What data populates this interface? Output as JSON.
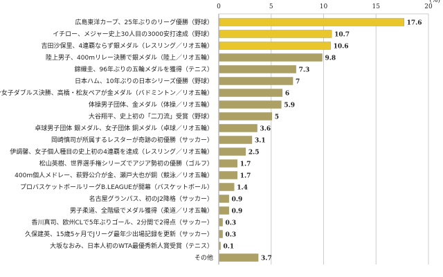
{
  "chart_data": {
    "type": "bar",
    "orientation": "horizontal",
    "unit": "(%)",
    "xlim": [
      0,
      20
    ],
    "xticks": [
      0,
      5,
      10,
      15,
      20
    ],
    "grid": true,
    "colors": {
      "highlight": "#E8C62C",
      "default": "#ADA064"
    },
    "highlight_count": 3,
    "categories": [
      "広島東洋カープ、25年ぶりのリーグ優勝（野球）",
      "イチロー、メジャー史上30人目の3000安打達成（野球）",
      "吉田沙保里、4連覇ならず銀メダル（レスリング／リオ五輪）",
      "陸上男子、400mリレー決勝で銀メダル（陸上／リオ五輪）",
      "錦織圭、96年ぶりの五輪メダルを獲得（テニス）",
      "日本ハム、10年ぶりの日本シリーズ優勝（野球）",
      "バドミントン女子ダブルス決勝、高橋・松友ペアが金メダル（バドミントン／リオ五輪）",
      "体操男子団体、金メダル（体操／リオ五輪）",
      "大谷翔平、史上初の「二刀流」受賞（野球）",
      "卓球男子団体 銀メダル、女子団体 銅メダル（卓球／リオ五輪）",
      "岡崎慎司が所属するレスターが奇跡の初優勝（サッカー）",
      "伊調馨、女子個人種目の史上初の4連覇を達成（レスリング／リオ五輪）",
      "松山英樹、世界選手権シリーズでアジア勢初の優勝（ゴルフ）",
      "400m個人メドレー、萩野公介が金、瀬戸大也が銅（競泳／リオ五輪）",
      "プロバスケットボールリーグB.LEAGUEが開幕（バスケットボール）",
      "名古屋グランパス、初のJ2降格（サッカー）",
      "男子柔道、全階級でメダル獲得（柔道／リオ五輪）",
      "香川真司、欧州CLで5年ぶりゴール、2分間で2得点（サッカー）",
      "久保建英、15歳5ヶ月でJリーグ最年少出場記録を更新（サッカー）",
      "大坂なおみ、日本人初のWTA最優秀新人賞受賞（テニス）",
      "その他"
    ],
    "values": [
      17.6,
      10.7,
      10.6,
      9.8,
      7.3,
      7,
      6,
      5.9,
      5,
      3.6,
      3.1,
      2.5,
      1.7,
      1.7,
      1.4,
      0.9,
      0.9,
      0.3,
      0.3,
      0.1,
      3.7
    ]
  }
}
